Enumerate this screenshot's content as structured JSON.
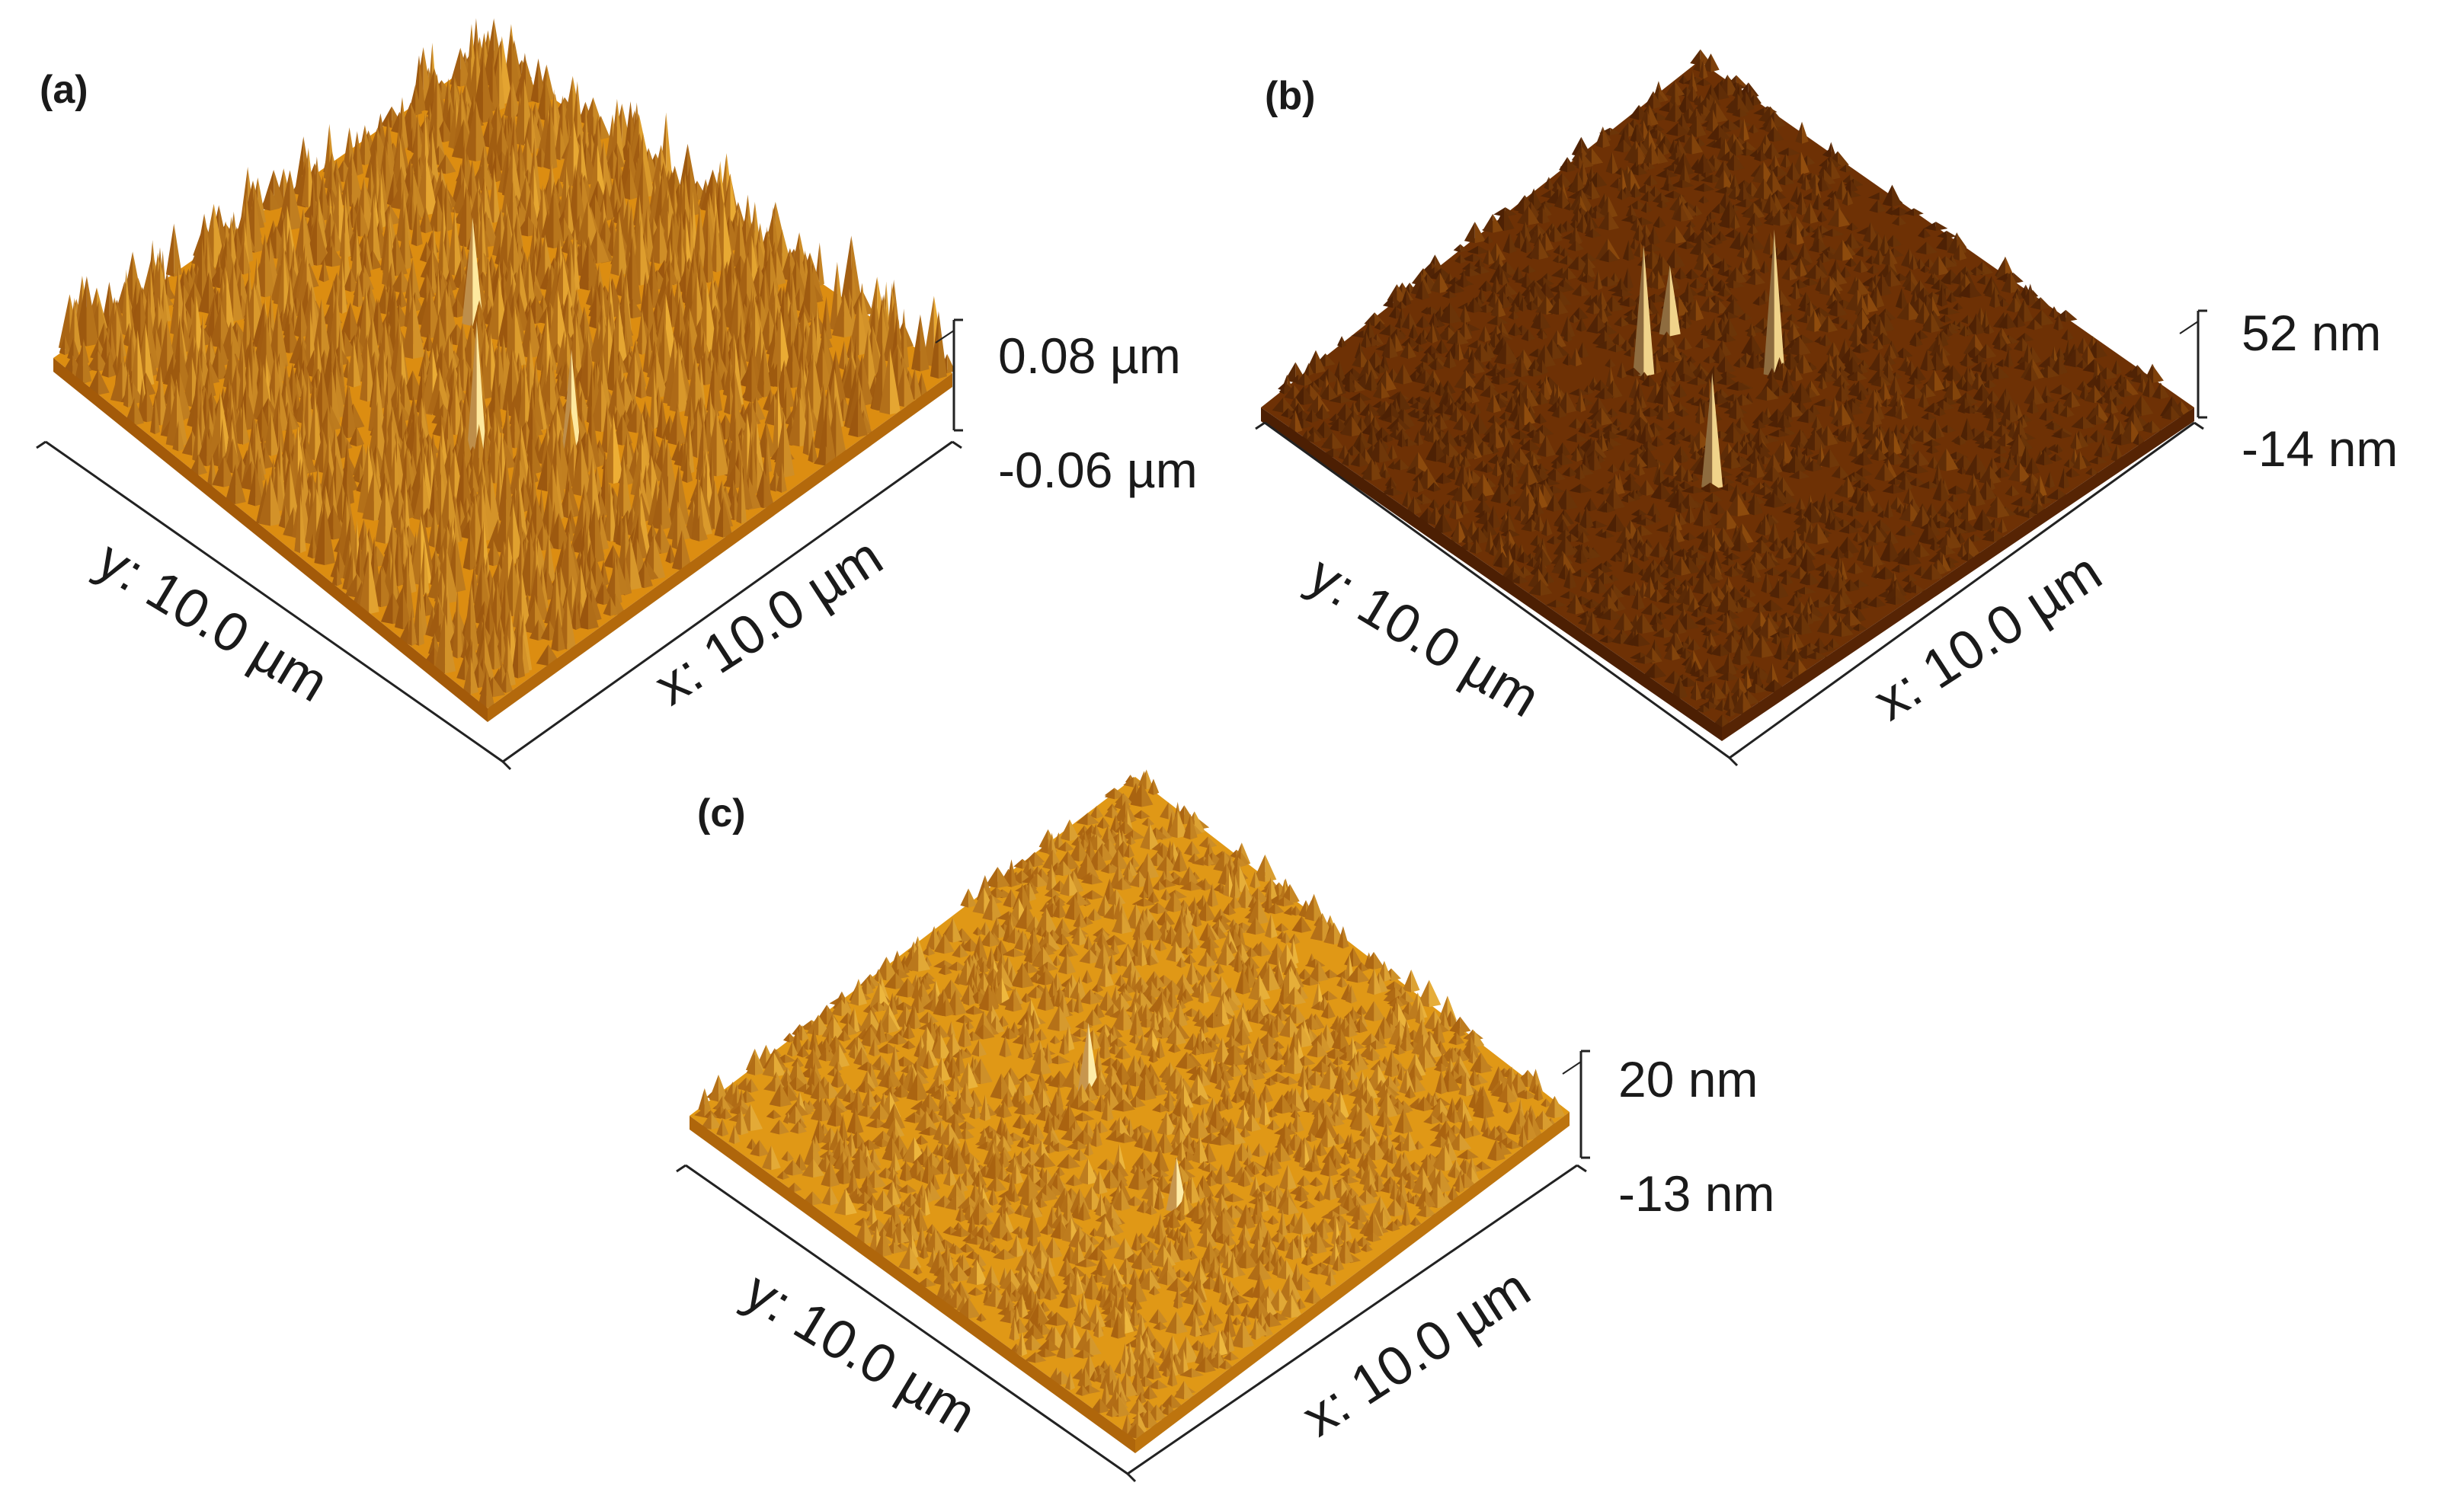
{
  "panels": [
    {
      "label": "(a)",
      "scale_max": "0.08 µm",
      "scale_min": "-0.06 µm",
      "x_axis": "x: 10.0 µm",
      "y_axis": "y: 10.0 µm",
      "colors": {
        "deep": "#8a4406",
        "mid": "#dc8d11",
        "light": "#f7b93a",
        "peak": "#fff1b0"
      },
      "roughness": "high"
    },
    {
      "label": "(b)",
      "scale_max": "52 nm",
      "scale_min": "-14 nm",
      "x_axis": "x: 10.0 µm",
      "y_axis": "y: 10.0 µm",
      "colors": {
        "deep": "#3e1702",
        "mid": "#6e3105",
        "light": "#9b540f",
        "peak": "#ffe9a0"
      },
      "roughness": "low with sparse spikes"
    },
    {
      "label": "(c)",
      "scale_max": "20 nm",
      "scale_min": "-13 nm",
      "x_axis": "x: 10.0 µm",
      "y_axis": "y: 10.0 µm",
      "colors": {
        "deep": "#9a5006",
        "mid": "#e09816",
        "light": "#f8c445",
        "peak": "#fff3b8"
      },
      "roughness": "fine"
    }
  ]
}
